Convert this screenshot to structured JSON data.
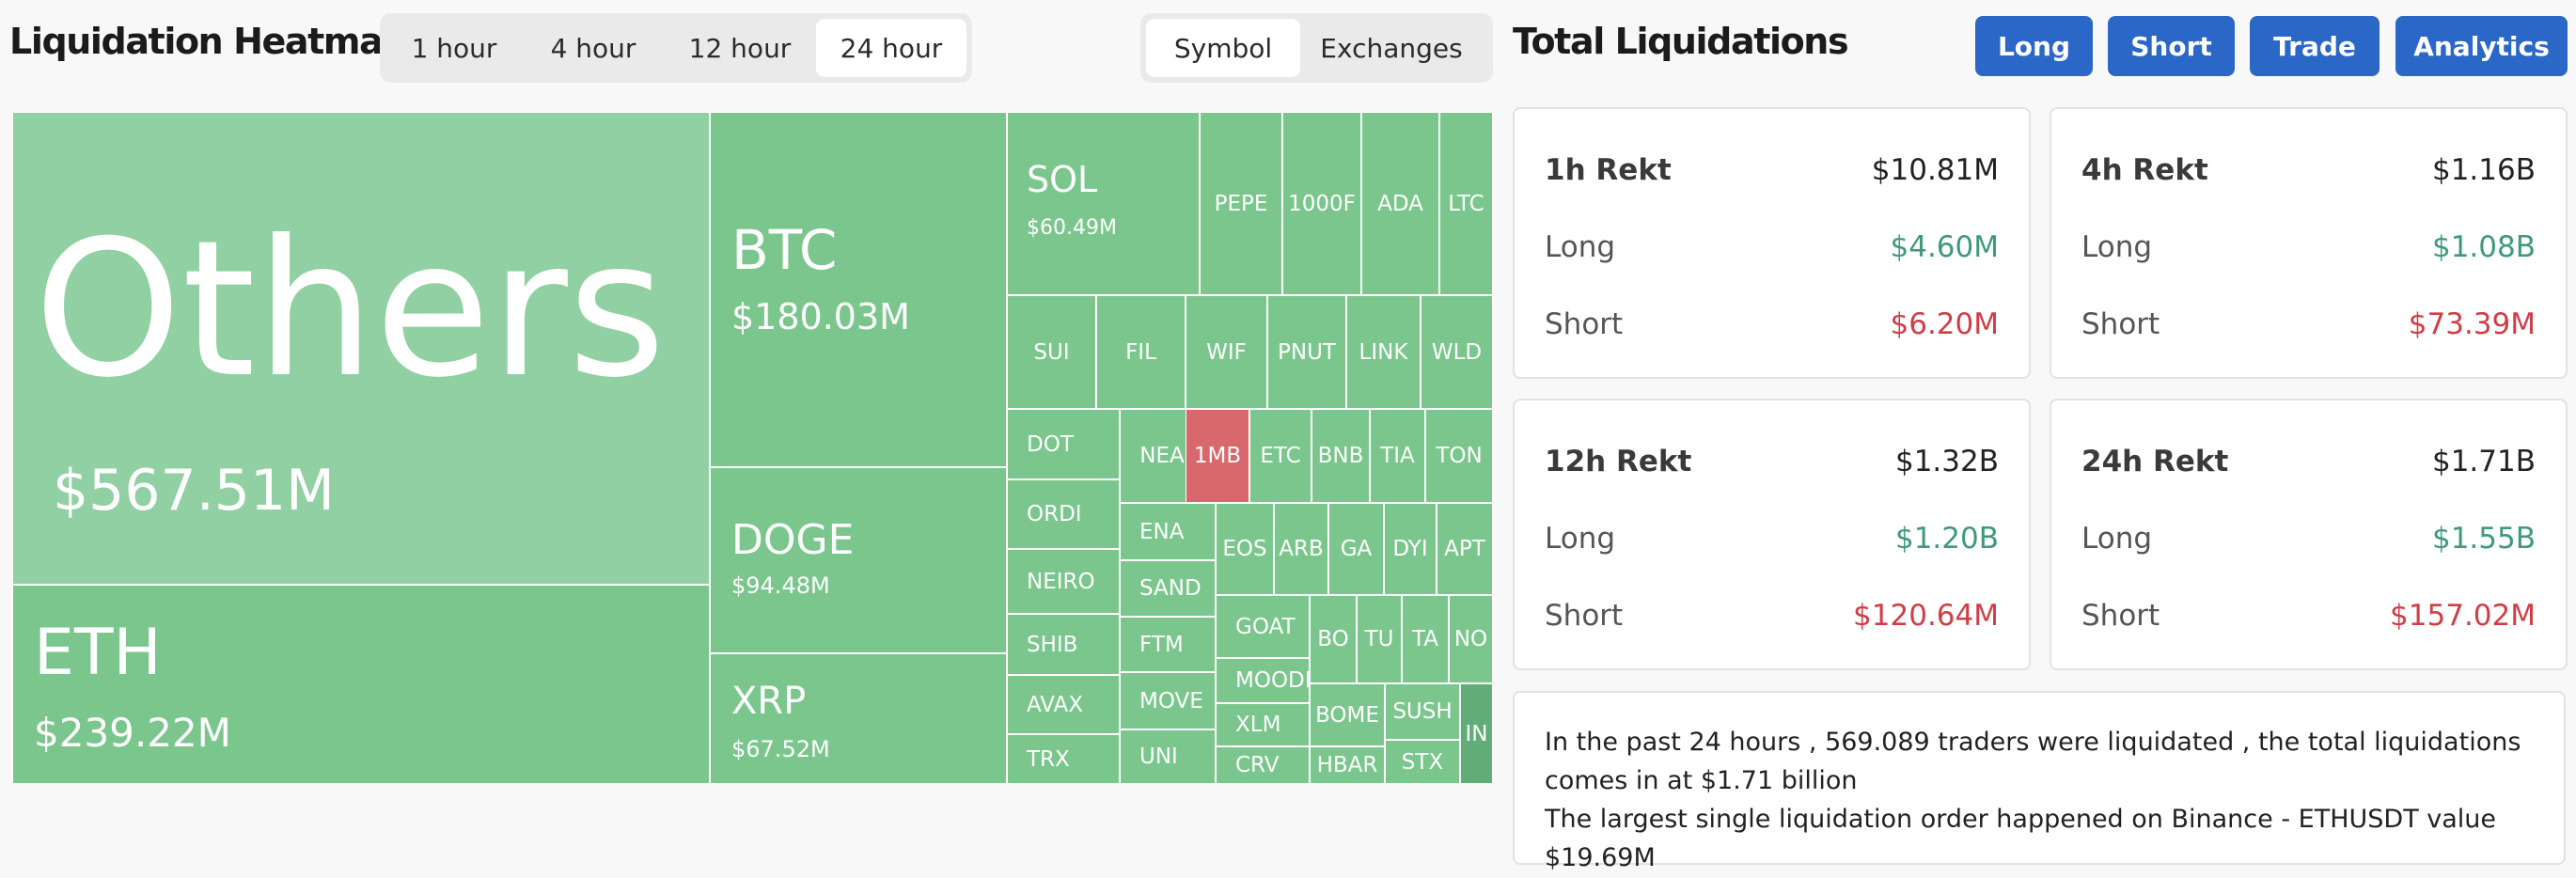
{
  "heatmap": {
    "title": "Liquidation Heatmap",
    "timeframes": [
      "1 hour",
      "4 hour",
      "12 hour",
      "24 hour"
    ],
    "active_timeframe": "24 hour",
    "groupings": [
      "Symbol",
      "Exchanges"
    ],
    "active_grouping": "Symbol",
    "colors": {
      "long": "#7ac68d",
      "short": "#d9686d",
      "others": "#91d0a2"
    },
    "tiles": [
      {
        "symbol": "Others",
        "value": "$567.51M",
        "side": "others"
      },
      {
        "symbol": "ETH",
        "value": "$239.22M",
        "side": "long"
      },
      {
        "symbol": "BTC",
        "value": "$180.03M",
        "side": "long"
      },
      {
        "symbol": "DOGE",
        "value": "$94.48M",
        "side": "long"
      },
      {
        "symbol": "XRP",
        "value": "$67.52M",
        "side": "long"
      },
      {
        "symbol": "SOL",
        "value": "$60.49M",
        "side": "long"
      },
      {
        "symbol": "PEPE",
        "side": "long"
      },
      {
        "symbol": "1000F",
        "side": "long"
      },
      {
        "symbol": "ADA",
        "side": "long"
      },
      {
        "symbol": "LTC",
        "side": "long"
      },
      {
        "symbol": "SUI",
        "side": "long"
      },
      {
        "symbol": "FIL",
        "side": "long"
      },
      {
        "symbol": "WIF",
        "side": "long"
      },
      {
        "symbol": "PNUT",
        "side": "long"
      },
      {
        "symbol": "LINK",
        "side": "long"
      },
      {
        "symbol": "WLD",
        "side": "long"
      },
      {
        "symbol": "DOT",
        "side": "long"
      },
      {
        "symbol": "ORDI",
        "side": "long"
      },
      {
        "symbol": "NEIRO",
        "side": "long"
      },
      {
        "symbol": "SHIB",
        "side": "long"
      },
      {
        "symbol": "AVAX",
        "side": "long"
      },
      {
        "symbol": "TRX",
        "side": "long"
      },
      {
        "symbol": "NEA",
        "side": "long"
      },
      {
        "symbol": "1MB",
        "side": "short"
      },
      {
        "symbol": "ETC",
        "side": "long"
      },
      {
        "symbol": "BNB",
        "side": "long"
      },
      {
        "symbol": "TIA",
        "side": "long"
      },
      {
        "symbol": "TON",
        "side": "long"
      },
      {
        "symbol": "ENA",
        "side": "long"
      },
      {
        "symbol": "SAND",
        "side": "long"
      },
      {
        "symbol": "FTM",
        "side": "long"
      },
      {
        "symbol": "MOVE",
        "side": "long"
      },
      {
        "symbol": "UNI",
        "side": "long"
      },
      {
        "symbol": "EOS",
        "side": "long"
      },
      {
        "symbol": "ARB",
        "side": "long"
      },
      {
        "symbol": "GA",
        "side": "long"
      },
      {
        "symbol": "DYI",
        "side": "long"
      },
      {
        "symbol": "APT",
        "side": "long"
      },
      {
        "symbol": "GOAT",
        "side": "long"
      },
      {
        "symbol": "MOODE",
        "side": "long"
      },
      {
        "symbol": "XLM",
        "side": "long"
      },
      {
        "symbol": "CRV",
        "side": "long"
      },
      {
        "symbol": "BO",
        "side": "long"
      },
      {
        "symbol": "TU",
        "side": "long"
      },
      {
        "symbol": "TA",
        "side": "long"
      },
      {
        "symbol": "NO",
        "side": "long"
      },
      {
        "symbol": "BOME",
        "side": "long"
      },
      {
        "symbol": "SUSH",
        "side": "long"
      },
      {
        "symbol": "IN",
        "side": "long-dark"
      },
      {
        "symbol": "HBAR",
        "side": "long"
      },
      {
        "symbol": "STX",
        "side": "long"
      }
    ]
  },
  "totals": {
    "title": "Total Liquidations",
    "buttons": [
      "Long",
      "Short",
      "Trade",
      "Analytics"
    ],
    "cards": [
      {
        "label": "1h Rekt",
        "total": "$10.81M",
        "long_label": "Long",
        "long": "$4.60M",
        "short_label": "Short",
        "short": "$6.20M"
      },
      {
        "label": "4h Rekt",
        "total": "$1.16B",
        "long_label": "Long",
        "long": "$1.08B",
        "short_label": "Short",
        "short": "$73.39M"
      },
      {
        "label": "12h Rekt",
        "total": "$1.32B",
        "long_label": "Long",
        "long": "$1.20B",
        "short_label": "Short",
        "short": "$120.64M"
      },
      {
        "label": "24h Rekt",
        "total": "$1.71B",
        "long_label": "Long",
        "long": "$1.55B",
        "short_label": "Short",
        "short": "$157.02M"
      }
    ],
    "summary_line1": "In the past 24 hours , 569.089 traders were liquidated , the total liquidations comes in at $1.71 billion",
    "summary_line2": "The largest single liquidation order happened on Binance - ETHUSDT value $19.69M"
  }
}
